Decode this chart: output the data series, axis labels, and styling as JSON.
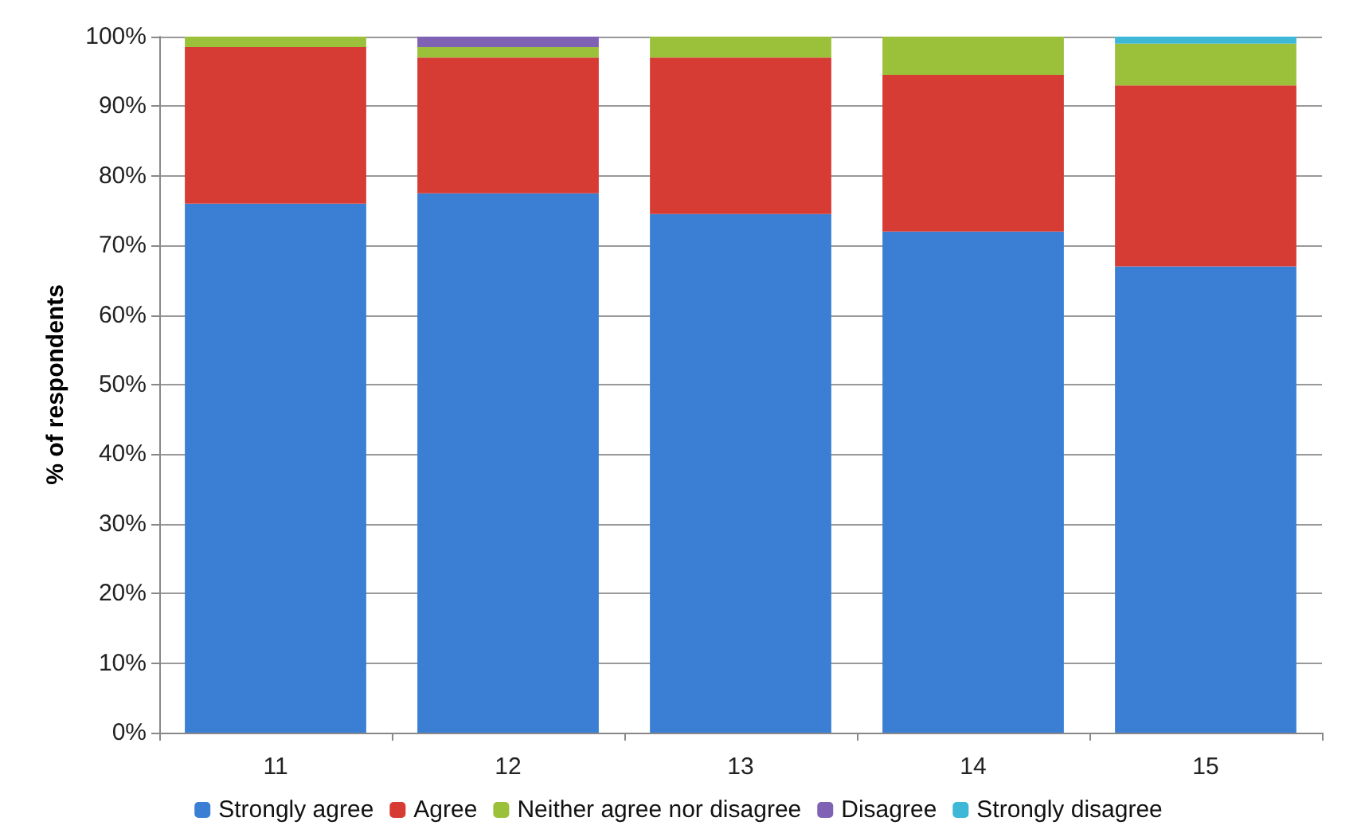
{
  "chart_data": {
    "type": "bar",
    "stacked": true,
    "ylabel": "% of respondents",
    "categories": [
      "11",
      "12",
      "13",
      "14",
      "15"
    ],
    "series": [
      {
        "name": "Strongly agree",
        "color": "#3b7fd4",
        "values": [
          76,
          77.5,
          74.5,
          72,
          67
        ]
      },
      {
        "name": "Agree",
        "color": "#d63c34",
        "values": [
          22.5,
          19.5,
          22.5,
          22.5,
          26
        ]
      },
      {
        "name": "Neither agree nor disagree",
        "color": "#9bc13b",
        "values": [
          1.5,
          1.5,
          3,
          5.5,
          6
        ]
      },
      {
        "name": "Disagree",
        "color": "#8062b4",
        "values": [
          0,
          1.5,
          0,
          0,
          0
        ]
      },
      {
        "name": "Strongly disagree",
        "color": "#3fb8d8",
        "values": [
          0,
          0,
          0,
          0,
          1
        ]
      }
    ],
    "ylim": [
      0,
      100
    ],
    "yticks": [
      {
        "value": 0,
        "label": "0%"
      },
      {
        "value": 10,
        "label": "10%"
      },
      {
        "value": 20,
        "label": "20%"
      },
      {
        "value": 30,
        "label": "30%"
      },
      {
        "value": 40,
        "label": "40%"
      },
      {
        "value": 50,
        "label": "50%"
      },
      {
        "value": 60,
        "label": "60%"
      },
      {
        "value": 70,
        "label": "70%"
      },
      {
        "value": 80,
        "label": "80%"
      },
      {
        "value": 90,
        "label": "90%"
      },
      {
        "value": 100,
        "label": "100%"
      }
    ],
    "grid": "y",
    "legend": "bottom"
  }
}
